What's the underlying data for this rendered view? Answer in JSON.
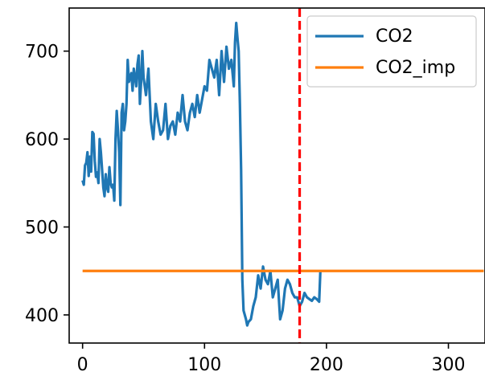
{
  "chart_data": {
    "type": "line",
    "title": "",
    "xlabel": "",
    "ylabel": "",
    "xlim": [
      -11,
      330
    ],
    "ylim": [
      368,
      749
    ],
    "xticks": [
      0,
      100,
      200,
      300
    ],
    "yticks": [
      400,
      500,
      600,
      700
    ],
    "grid": false,
    "legend": {
      "position": "top-right",
      "entries": [
        "CO2",
        "CO2_imp"
      ]
    },
    "vline": {
      "x": 178,
      "color": "#ff0000",
      "style": "dashed"
    },
    "series": [
      {
        "name": "CO2",
        "color": "#1f77b4",
        "x": [
          0,
          1,
          2,
          3,
          4,
          5,
          6,
          7,
          8,
          9,
          10,
          11,
          12,
          13,
          14,
          15,
          16,
          17,
          18,
          19,
          20,
          21,
          22,
          23,
          24,
          25,
          26,
          27,
          28,
          29,
          30,
          31,
          32,
          33,
          34,
          35,
          36,
          37,
          38,
          39,
          40,
          41,
          42,
          43,
          44,
          45,
          46,
          47,
          48,
          49,
          50,
          52,
          54,
          56,
          58,
          60,
          62,
          64,
          66,
          68,
          70,
          72,
          74,
          76,
          78,
          80,
          82,
          84,
          86,
          88,
          90,
          92,
          94,
          96,
          98,
          100,
          102,
          104,
          106,
          108,
          110,
          112,
          114,
          116,
          118,
          120,
          122,
          124,
          125,
          126,
          127,
          128,
          129,
          130,
          131,
          132,
          133,
          134,
          135,
          136,
          138,
          140,
          142,
          144,
          146,
          148,
          150,
          152,
          154,
          156,
          158,
          160,
          162,
          164,
          166,
          168,
          170,
          172,
          174,
          176,
          177,
          178,
          180,
          182,
          184,
          186,
          188,
          190,
          192,
          194,
          195
        ],
        "values": [
          553,
          548,
          570,
          573,
          585,
          558,
          580,
          563,
          608,
          606,
          575,
          557,
          562,
          550,
          600,
          585,
          565,
          545,
          535,
          560,
          545,
          540,
          568,
          550,
          545,
          548,
          530,
          600,
          632,
          610,
          585,
          525,
          630,
          640,
          610,
          620,
          640,
          690,
          665,
          670,
          675,
          655,
          680,
          670,
          660,
          685,
          695,
          640,
          665,
          700,
          670,
          650,
          680,
          620,
          600,
          640,
          620,
          605,
          610,
          640,
          600,
          615,
          620,
          605,
          630,
          620,
          650,
          620,
          610,
          630,
          640,
          625,
          650,
          630,
          645,
          660,
          655,
          690,
          680,
          670,
          690,
          650,
          700,
          665,
          705,
          680,
          690,
          660,
          710,
          732,
          715,
          700,
          640,
          565,
          440,
          405,
          400,
          395,
          388,
          392,
          395,
          410,
          420,
          445,
          430,
          455,
          440,
          435,
          450,
          420,
          430,
          440,
          395,
          405,
          430,
          440,
          435,
          425,
          420,
          420,
          415,
          410,
          415,
          425,
          420,
          418,
          416,
          420,
          418,
          415,
          450
        ]
      },
      {
        "name": "CO2_imp",
        "color": "#ff7f0e",
        "x": [
          0,
          329
        ],
        "values": [
          450,
          450
        ]
      }
    ]
  }
}
